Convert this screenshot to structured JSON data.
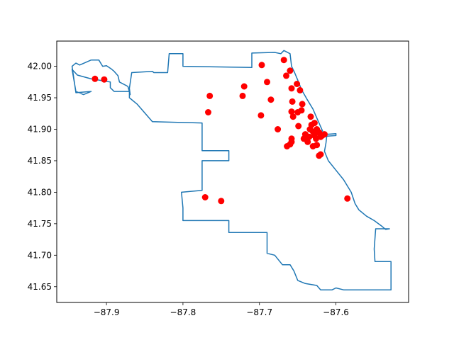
{
  "chart_data": {
    "type": "scatter",
    "title": "",
    "xlabel": "",
    "ylabel": "",
    "xlim": [
      -87.965,
      -87.505
    ],
    "ylim": [
      41.625,
      42.04
    ],
    "xticks": [
      -87.9,
      -87.8,
      -87.7,
      -87.6
    ],
    "xtick_labels": [
      "−87.9",
      "−87.8",
      "−87.7",
      "−87.6"
    ],
    "yticks": [
      41.65,
      41.7,
      41.75,
      41.8,
      41.85,
      41.9,
      41.95,
      42.0
    ],
    "ytick_labels": [
      "41.65",
      "41.70",
      "41.75",
      "41.80",
      "41.85",
      "41.90",
      "41.95",
      "42.00"
    ],
    "grid": false,
    "colors": {
      "boundary": "#1f77b4",
      "points": "#ff0000",
      "axes": "#000000"
    },
    "boundary": [
      [
        -87.92,
        42.01
      ],
      [
        -87.91,
        42.01
      ],
      [
        -87.905,
        42.0
      ],
      [
        -87.9,
        42.001
      ],
      [
        -87.894,
        41.996
      ],
      [
        -87.89,
        41.992
      ],
      [
        -87.885,
        41.985
      ],
      [
        -87.883,
        41.975
      ],
      [
        -87.872,
        41.968
      ],
      [
        -87.869,
        41.955
      ],
      [
        -87.87,
        41.965
      ],
      [
        -87.867,
        41.99
      ],
      [
        -87.84,
        41.992
      ],
      [
        -87.838,
        41.99
      ],
      [
        -87.82,
        41.99
      ],
      [
        -87.818,
        42.02
      ],
      [
        -87.8,
        42.02
      ],
      [
        -87.8,
        42.0
      ],
      [
        -87.71,
        41.998
      ],
      [
        -87.71,
        42.021
      ],
      [
        -87.68,
        42.022
      ],
      [
        -87.672,
        42.02
      ],
      [
        -87.668,
        42.025
      ],
      [
        -87.66,
        42.02
      ],
      [
        -87.658,
        42.0
      ],
      [
        -87.654,
        41.99
      ],
      [
        -87.65,
        41.978
      ],
      [
        -87.645,
        41.963
      ],
      [
        -87.638,
        41.948
      ],
      [
        -87.63,
        41.932
      ],
      [
        -87.624,
        41.915
      ],
      [
        -87.617,
        41.896
      ],
      [
        -87.612,
        41.892
      ],
      [
        -87.6,
        41.893
      ],
      [
        -87.6,
        41.89
      ],
      [
        -87.612,
        41.889
      ],
      [
        -87.613,
        41.878
      ],
      [
        -87.615,
        41.865
      ],
      [
        -87.61,
        41.85
      ],
      [
        -87.6,
        41.835
      ],
      [
        -87.59,
        41.82
      ],
      [
        -87.58,
        41.8
      ],
      [
        -87.575,
        41.782
      ],
      [
        -87.57,
        41.772
      ],
      [
        -87.56,
        41.762
      ],
      [
        -87.55,
        41.755
      ],
      [
        -87.54,
        41.746
      ],
      [
        -87.535,
        41.741
      ],
      [
        -87.53,
        41.742
      ],
      [
        -87.548,
        41.742
      ],
      [
        -87.55,
        41.71
      ],
      [
        -87.549,
        41.69
      ],
      [
        -87.528,
        41.69
      ],
      [
        -87.528,
        41.645
      ],
      [
        -87.59,
        41.645
      ],
      [
        -87.6,
        41.648
      ],
      [
        -87.605,
        41.645
      ],
      [
        -87.62,
        41.645
      ],
      [
        -87.625,
        41.652
      ],
      [
        -87.64,
        41.655
      ],
      [
        -87.65,
        41.66
      ],
      [
        -87.655,
        41.675
      ],
      [
        -87.66,
        41.685
      ],
      [
        -87.67,
        41.685
      ],
      [
        -87.68,
        41.7
      ],
      [
        -87.69,
        41.703
      ],
      [
        -87.69,
        41.736
      ],
      [
        -87.74,
        41.736
      ],
      [
        -87.74,
        41.755
      ],
      [
        -87.8,
        41.755
      ],
      [
        -87.8,
        41.775
      ],
      [
        -87.802,
        41.8
      ],
      [
        -87.775,
        41.803
      ],
      [
        -87.775,
        41.85
      ],
      [
        -87.74,
        41.85
      ],
      [
        -87.74,
        41.866
      ],
      [
        -87.775,
        41.866
      ],
      [
        -87.775,
        41.91
      ],
      [
        -87.84,
        41.912
      ],
      [
        -87.86,
        41.94
      ],
      [
        -87.87,
        41.95
      ],
      [
        -87.87,
        41.96
      ],
      [
        -87.89,
        41.96
      ],
      [
        -87.895,
        41.966
      ],
      [
        -87.895,
        41.975
      ],
      [
        -87.92,
        41.98
      ],
      [
        -87.938,
        41.986
      ],
      [
        -87.945,
        41.995
      ],
      [
        -87.94,
        41.96
      ],
      [
        -87.93,
        41.955
      ],
      [
        -87.92,
        41.96
      ],
      [
        -87.94,
        41.958
      ],
      [
        -87.945,
        42.0
      ],
      [
        -87.94,
        42.005
      ],
      [
        -87.935,
        42.002
      ],
      [
        -87.92,
        42.01
      ]
    ],
    "points": [
      [
        -87.915,
        41.98
      ],
      [
        -87.903,
        41.979
      ],
      [
        -87.765,
        41.953
      ],
      [
        -87.767,
        41.927
      ],
      [
        -87.72,
        41.968
      ],
      [
        -87.722,
        41.953
      ],
      [
        -87.697,
        42.002
      ],
      [
        -87.69,
        41.975
      ],
      [
        -87.685,
        41.947
      ],
      [
        -87.698,
        41.922
      ],
      [
        -87.676,
        41.9
      ],
      [
        -87.664,
        41.873
      ],
      [
        -87.668,
        42.01
      ],
      [
        -87.665,
        41.985
      ],
      [
        -87.66,
        41.993
      ],
      [
        -87.658,
        41.965
      ],
      [
        -87.651,
        41.972
      ],
      [
        -87.647,
        41.962
      ],
      [
        -87.657,
        41.944
      ],
      [
        -87.644,
        41.94
      ],
      [
        -87.658,
        41.928
      ],
      [
        -87.656,
        41.92
      ],
      [
        -87.65,
        41.927
      ],
      [
        -87.645,
        41.93
      ],
      [
        -87.649,
        41.905
      ],
      [
        -87.658,
        41.885
      ],
      [
        -87.658,
        41.88
      ],
      [
        -87.66,
        41.876
      ],
      [
        -87.642,
        41.885
      ],
      [
        -87.64,
        41.892
      ],
      [
        -87.637,
        41.88
      ],
      [
        -87.634,
        41.9
      ],
      [
        -87.632,
        41.907
      ],
      [
        -87.63,
        41.896
      ],
      [
        -87.628,
        41.89
      ],
      [
        -87.626,
        41.885
      ],
      [
        -87.625,
        41.9
      ],
      [
        -87.622,
        41.895
      ],
      [
        -87.62,
        41.888
      ],
      [
        -87.618,
        41.89
      ],
      [
        -87.615,
        41.892
      ],
      [
        -87.633,
        41.92
      ],
      [
        -87.628,
        41.91
      ],
      [
        -87.63,
        41.873
      ],
      [
        -87.625,
        41.875
      ],
      [
        -87.622,
        41.858
      ],
      [
        -87.62,
        41.86
      ],
      [
        -87.635,
        41.888
      ],
      [
        -87.627,
        41.897
      ],
      [
        -87.585,
        41.79
      ],
      [
        -87.771,
        41.792
      ],
      [
        -87.75,
        41.786
      ]
    ]
  }
}
